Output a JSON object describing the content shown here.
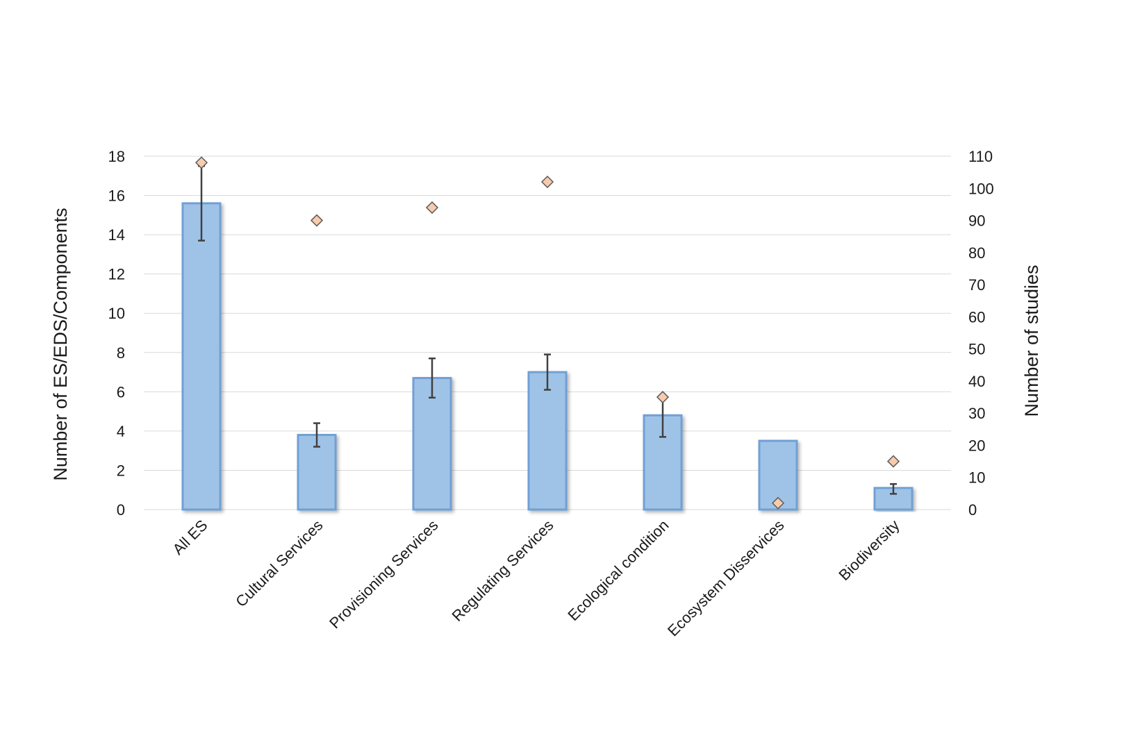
{
  "chart_data": {
    "type": "bar",
    "categories": [
      "All ES",
      "Cultural Services",
      "Provisioning Services",
      "Regulating Services",
      "Ecological condition",
      "Ecosystem Disservices",
      "Biodiversity"
    ],
    "series": [
      {
        "type": "bar",
        "axis": "left",
        "values": [
          15.6,
          3.8,
          6.7,
          7.0,
          4.8,
          3.5,
          1.1
        ],
        "error_low": [
          13.7,
          3.2,
          5.7,
          6.1,
          3.7,
          null,
          0.8
        ],
        "error_high": [
          17.5,
          4.4,
          7.7,
          7.9,
          5.7,
          null,
          1.3
        ]
      },
      {
        "type": "scatter",
        "axis": "right",
        "marker": "diamond",
        "values": [
          108,
          90,
          94,
          102,
          35,
          2,
          15
        ]
      }
    ],
    "ylabel": "Number of ES/EDS/Components",
    "y2label": "Number of studies",
    "ylim": [
      0,
      18
    ],
    "y2lim": [
      0,
      110
    ],
    "yticks": [
      0,
      2,
      4,
      6,
      8,
      10,
      12,
      14,
      16,
      18
    ],
    "y2ticks": [
      0,
      10,
      20,
      30,
      40,
      50,
      60,
      70,
      80,
      90,
      100,
      110
    ],
    "grid": true,
    "colors": {
      "bar_fill": "#9fc3e7",
      "bar_stroke": "#6fa0d6",
      "diamond_fill": "#f8cbad",
      "diamond_stroke": "#5a5a5a",
      "error_bar": "#404040",
      "grid": "#d9d9d9"
    }
  }
}
